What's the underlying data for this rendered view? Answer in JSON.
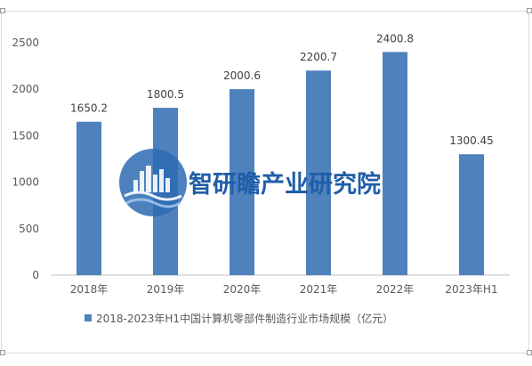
{
  "chart_data": {
    "type": "bar",
    "categories": [
      "2018年",
      "2019年",
      "2020年",
      "2021年",
      "2022年",
      "2023年H1"
    ],
    "series": [
      {
        "name": "2018-2023年H1中国计算机零部件制造行业市场规模（亿元）",
        "values": [
          1650.2,
          1800.5,
          2000.6,
          2200.7,
          2400.8,
          1300.45
        ],
        "labels": [
          "1650.2",
          "1800.5",
          "2000.6",
          "2200.7",
          "2400.8",
          "1300.45"
        ],
        "color": "#4f81bd"
      }
    ],
    "yticks": [
      0,
      500,
      1000,
      1500,
      2000,
      2500
    ],
    "ylim": [
      0,
      2500
    ],
    "grid": false,
    "legend_position": "bottom"
  },
  "watermark": {
    "text": "智研瞻产业研究院",
    "color": "#1f5ea8"
  }
}
